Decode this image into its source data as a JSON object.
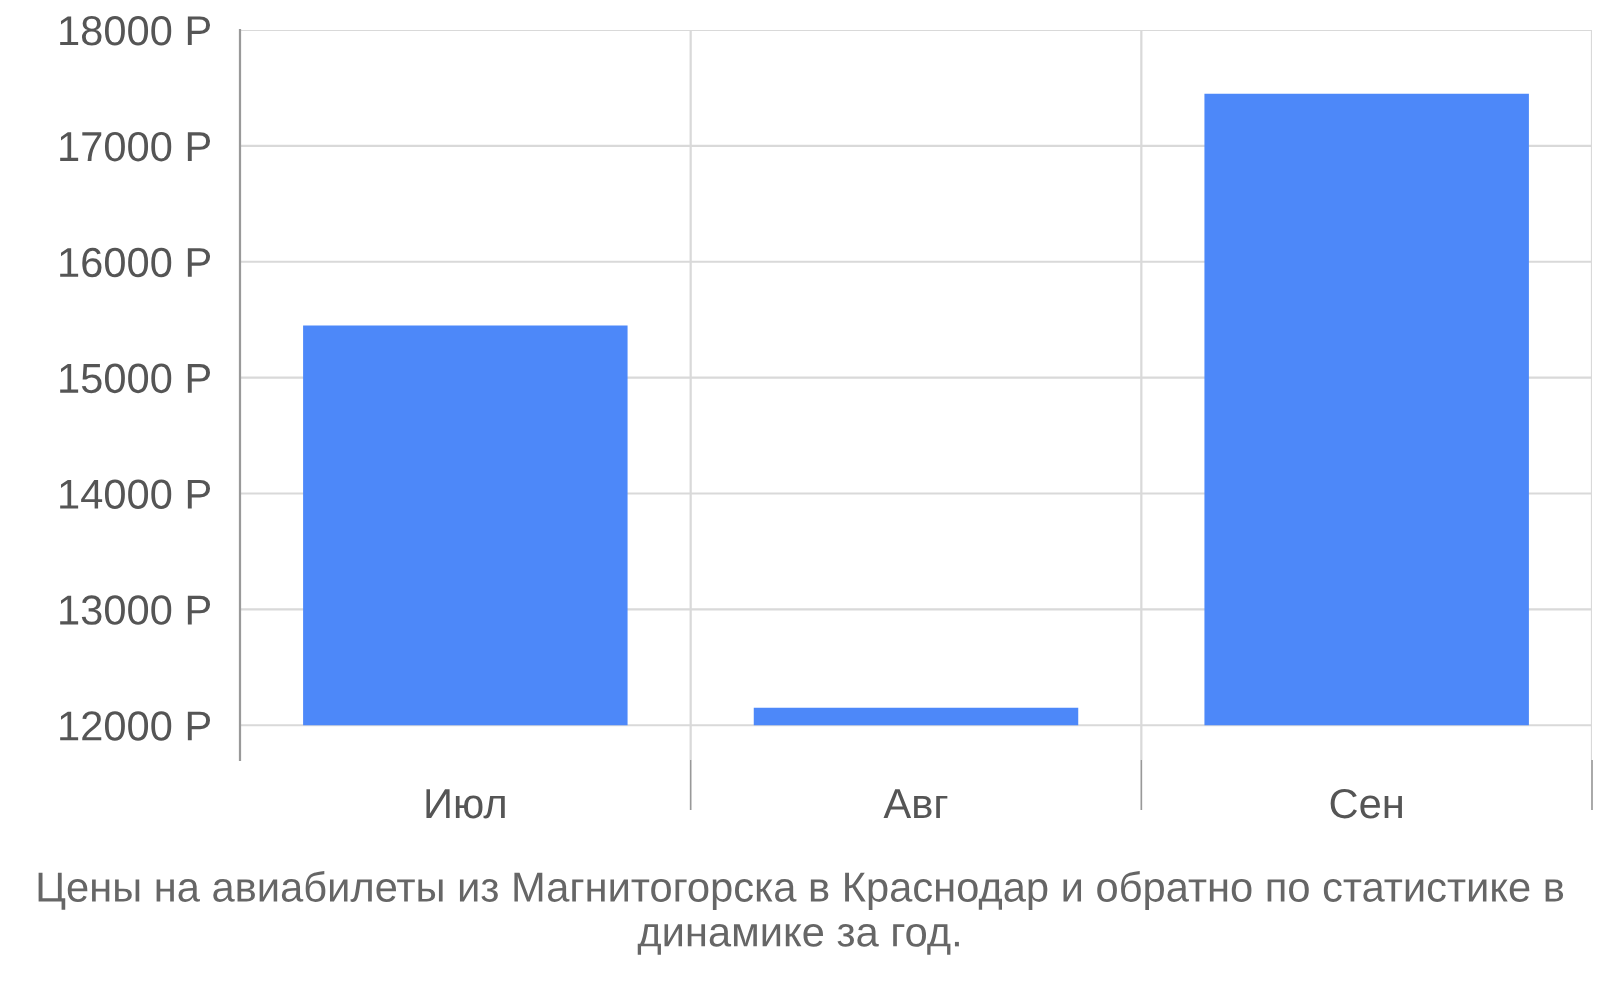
{
  "chart_data": {
    "type": "bar",
    "title": "Цены на авиабилеты из Магнитогорска в Краснодар и обратно по статистике в динамике за год.",
    "categories": [
      "Июл",
      "Авг",
      "Сен"
    ],
    "base": [
      12000,
      12000,
      12000
    ],
    "values": [
      3450,
      150,
      5450
    ],
    "color": "#4d88f9",
    "ylim": [
      11700,
      18000
    ],
    "yticks": [
      {
        "value": 12000,
        "label": "12000 Р"
      },
      {
        "value": 13000,
        "label": "13000 Р"
      },
      {
        "value": 14000,
        "label": "14000 Р"
      },
      {
        "value": 15000,
        "label": "15000 Р"
      },
      {
        "value": 16000,
        "label": "16000 Р"
      },
      {
        "value": 17000,
        "label": "17000 Р"
      },
      {
        "value": 18000,
        "label": "18000 Р"
      }
    ],
    "grid": true
  }
}
